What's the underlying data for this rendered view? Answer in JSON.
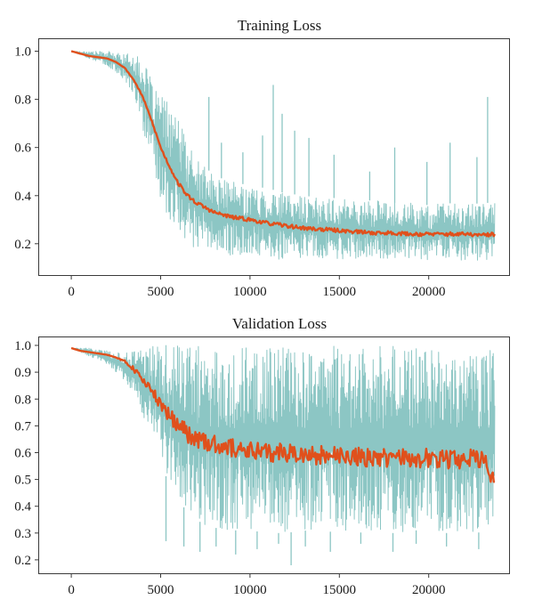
{
  "chart_data": [
    {
      "type": "line",
      "title": "Training Loss",
      "xlabel": "",
      "ylabel": "",
      "xlim": [
        -1800,
        24500
      ],
      "ylim": [
        0.07,
        1.05
      ],
      "xticks": [
        0,
        5000,
        10000,
        15000,
        20000
      ],
      "yticks": [
        0.2,
        0.4,
        0.6,
        0.8,
        1.0
      ],
      "xtick_labels": [
        "0",
        "5000",
        "10000",
        "15000",
        "20000"
      ],
      "ytick_labels": [
        "0.2",
        "0.4",
        "0.6",
        "0.8",
        "1.0"
      ],
      "grid": false,
      "colors": {
        "raw": "#8cc6c4",
        "smoothed": "#e0501c"
      },
      "series": [
        {
          "kind": "raw",
          "x": [
            0,
            1000,
            2000,
            3000,
            3500,
            4000,
            4500,
            5000,
            5500,
            6000,
            6500,
            7000,
            7500,
            8000,
            9000,
            10000,
            11000,
            12000,
            13000,
            14000,
            15000,
            16000,
            17000,
            18000,
            19000,
            20000,
            21000,
            22000,
            23000,
            23700
          ],
          "lower": [
            1.0,
            0.97,
            0.94,
            0.88,
            0.82,
            0.68,
            0.52,
            0.38,
            0.3,
            0.24,
            0.2,
            0.18,
            0.17,
            0.16,
            0.15,
            0.15,
            0.14,
            0.13,
            0.14,
            0.14,
            0.13,
            0.14,
            0.13,
            0.14,
            0.14,
            0.13,
            0.14,
            0.13,
            0.13,
            0.13
          ],
          "upper": [
            1.0,
            1.0,
            1.0,
            0.99,
            0.99,
            0.96,
            0.88,
            0.82,
            0.78,
            0.72,
            0.62,
            0.56,
            0.52,
            0.48,
            0.46,
            0.44,
            0.43,
            0.41,
            0.4,
            0.39,
            0.39,
            0.38,
            0.38,
            0.37,
            0.37,
            0.36,
            0.37,
            0.36,
            0.37,
            0.37
          ],
          "spikes": [
            [
              7700,
              0.81
            ],
            [
              8400,
              0.62
            ],
            [
              9600,
              0.58
            ],
            [
              10700,
              0.65
            ],
            [
              11300,
              0.86
            ],
            [
              11800,
              0.74
            ],
            [
              12500,
              0.67
            ],
            [
              13300,
              0.64
            ],
            [
              14700,
              0.57
            ],
            [
              16700,
              0.5
            ],
            [
              18100,
              0.6
            ],
            [
              19900,
              0.54
            ],
            [
              21200,
              0.62
            ],
            [
              22700,
              0.56
            ],
            [
              23300,
              0.81
            ]
          ]
        },
        {
          "kind": "smoothed",
          "x": [
            0,
            500,
            1000,
            1500,
            2000,
            2500,
            3000,
            3500,
            4000,
            4500,
            5000,
            5500,
            6000,
            6500,
            7000,
            7500,
            8000,
            9000,
            10000,
            11000,
            12000,
            13000,
            14000,
            15000,
            16000,
            17000,
            18000,
            19000,
            20000,
            21000,
            22000,
            23000,
            23700
          ],
          "y": [
            1.0,
            0.99,
            0.98,
            0.975,
            0.97,
            0.955,
            0.93,
            0.88,
            0.81,
            0.71,
            0.6,
            0.52,
            0.45,
            0.4,
            0.37,
            0.35,
            0.33,
            0.31,
            0.3,
            0.285,
            0.275,
            0.265,
            0.26,
            0.255,
            0.25,
            0.245,
            0.245,
            0.24,
            0.24,
            0.24,
            0.24,
            0.235,
            0.24
          ]
        }
      ]
    },
    {
      "type": "line",
      "title": "Validation Loss",
      "xlabel": "",
      "ylabel": "",
      "xlim": [
        -1800,
        24500
      ],
      "ylim": [
        0.15,
        1.03
      ],
      "xticks": [
        0,
        5000,
        10000,
        15000,
        20000
      ],
      "yticks": [
        0.2,
        0.3,
        0.4,
        0.5,
        0.6,
        0.7,
        0.8,
        0.9,
        1.0
      ],
      "xtick_labels": [
        "0",
        "5000",
        "10000",
        "15000",
        "20000"
      ],
      "ytick_labels": [
        "0.2",
        "0.3",
        "0.4",
        "0.5",
        "0.6",
        "0.7",
        "0.8",
        "0.9",
        "1.0"
      ],
      "grid": false,
      "colors": {
        "raw": "#8cc6c4",
        "smoothed": "#e0501c"
      },
      "series": [
        {
          "kind": "raw",
          "x": [
            0,
            1000,
            2000,
            3000,
            3500,
            4000,
            4500,
            5000,
            5500,
            6000,
            6500,
            7000,
            7500,
            8000,
            9000,
            10000,
            11000,
            12000,
            13000,
            14000,
            15000,
            16000,
            17000,
            18000,
            19000,
            20000,
            21000,
            22000,
            23000,
            23700
          ],
          "lower": [
            0.99,
            0.96,
            0.93,
            0.87,
            0.82,
            0.74,
            0.66,
            0.56,
            0.48,
            0.42,
            0.38,
            0.35,
            0.33,
            0.32,
            0.31,
            0.31,
            0.3,
            0.3,
            0.31,
            0.3,
            0.31,
            0.3,
            0.31,
            0.3,
            0.31,
            0.31,
            0.3,
            0.31,
            0.3,
            0.3
          ],
          "upper": [
            0.99,
            0.99,
            0.98,
            0.97,
            0.99,
            1.0,
            1.0,
            1.0,
            1.0,
            1.0,
            1.0,
            1.0,
            1.0,
            1.0,
            1.0,
            1.0,
            1.0,
            1.0,
            1.0,
            1.0,
            1.0,
            1.0,
            1.0,
            1.0,
            1.0,
            1.0,
            1.0,
            1.0,
            1.0,
            1.0
          ],
          "spikes": [
            [
              5300,
              0.27
            ],
            [
              6300,
              0.25
            ],
            [
              7200,
              0.23
            ],
            [
              8100,
              0.25
            ],
            [
              9200,
              0.22
            ],
            [
              10400,
              0.24
            ],
            [
              11600,
              0.26
            ],
            [
              12300,
              0.18
            ],
            [
              13100,
              0.25
            ],
            [
              14500,
              0.23
            ],
            [
              16200,
              0.26
            ],
            [
              18000,
              0.23
            ],
            [
              19300,
              0.26
            ],
            [
              21000,
              0.25
            ],
            [
              22800,
              0.24
            ]
          ]
        },
        {
          "kind": "smoothed",
          "x": [
            0,
            500,
            1000,
            1500,
            2000,
            2500,
            3000,
            3500,
            4000,
            4500,
            5000,
            5500,
            6000,
            6500,
            7000,
            7500,
            8000,
            9000,
            10000,
            11000,
            12000,
            13000,
            14000,
            15000,
            16000,
            17000,
            18000,
            19000,
            20000,
            21000,
            22000,
            23000,
            23700
          ],
          "y": [
            0.99,
            0.98,
            0.975,
            0.97,
            0.965,
            0.955,
            0.94,
            0.91,
            0.87,
            0.83,
            0.78,
            0.74,
            0.7,
            0.67,
            0.65,
            0.64,
            0.63,
            0.62,
            0.61,
            0.6,
            0.6,
            0.59,
            0.59,
            0.585,
            0.585,
            0.58,
            0.58,
            0.58,
            0.58,
            0.575,
            0.575,
            0.58,
            0.49
          ]
        }
      ]
    }
  ]
}
